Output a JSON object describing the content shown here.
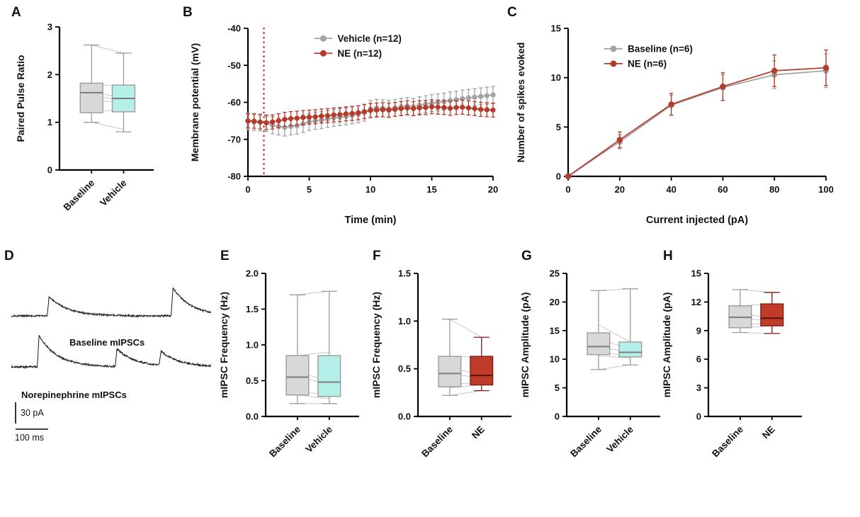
{
  "panel_letters": [
    "A",
    "B",
    "C",
    "D",
    "E",
    "F",
    "G",
    "H"
  ],
  "colors": {
    "axis": "#000000",
    "gray": "#a3a3a3",
    "red": "#b43a2b",
    "vline_red": "#c0392b",
    "gray_box_fill": "#d8d8d8",
    "cyan_box_fill": "#b4f0e8",
    "red_box_fill": "#c13b2b",
    "box_stroke": "#9b9b9b",
    "red_box_stroke": "#7c2014",
    "median": "#7d7d7d",
    "red_median": "#551208",
    "pair_line": "#c8c8c8",
    "trace": "#1a1a1a"
  },
  "chart_data": [
    {
      "id": "A",
      "type": "boxplot",
      "ylabel": "Paired Pulse Ratio",
      "ylim": [
        0,
        3
      ],
      "yticks": [
        0,
        1,
        2,
        3
      ],
      "ydec": 0,
      "categories": [
        "Baseline",
        "Vehicle"
      ],
      "boxes": [
        {
          "category": "Baseline",
          "min": 1.0,
          "q1": 1.2,
          "median": 1.62,
          "q3": 1.82,
          "max": 2.62,
          "fill": "gray_box_fill"
        },
        {
          "category": "Vehicle",
          "min": 0.8,
          "q1": 1.22,
          "median": 1.5,
          "q3": 1.78,
          "max": 2.45,
          "fill": "cyan_box_fill"
        }
      ],
      "pairs": [
        [
          2.62,
          2.45
        ],
        [
          1.8,
          1.75
        ],
        [
          1.65,
          1.5
        ],
        [
          1.6,
          1.42
        ],
        [
          1.42,
          1.45
        ],
        [
          1.2,
          1.28
        ],
        [
          1.0,
          0.85
        ]
      ]
    },
    {
      "id": "B",
      "type": "line",
      "xlabel": "Time (min)",
      "ylabel": "Membrane potential (mV)",
      "xlim": [
        0,
        20
      ],
      "ylim": [
        -80,
        -40
      ],
      "xticks": [
        0,
        5,
        10,
        15,
        20
      ],
      "yticks": [
        -80,
        -70,
        -60,
        -50,
        -40
      ],
      "ydec": 0,
      "vline": {
        "x": 1.3,
        "color": "vline_red",
        "style": "dotted"
      },
      "legend_pos": [
        0.27,
        0.03
      ],
      "marker_r": 3.6,
      "x": [
        0,
        0.5,
        1,
        1.5,
        2,
        2.5,
        3,
        3.5,
        4,
        4.5,
        5,
        5.5,
        6,
        6.5,
        7,
        7.5,
        8,
        8.5,
        9,
        9.5,
        10,
        10.5,
        11,
        11.5,
        12,
        12.5,
        13,
        13.5,
        14,
        14.5,
        15,
        15.5,
        16,
        16.5,
        17,
        17.5,
        18,
        18.5,
        19,
        19.5,
        20
      ],
      "series": [
        {
          "name": "Vehicle (n=12)",
          "color": "gray",
          "err": 2.3,
          "values": [
            -65.2,
            -65.3,
            -65.4,
            -65.6,
            -66.2,
            -66.5,
            -66.8,
            -66.5,
            -66.3,
            -65.8,
            -65.3,
            -65.0,
            -64.8,
            -64.5,
            -64.2,
            -64.0,
            -63.8,
            -63.5,
            -63.2,
            -62.8,
            -61.8,
            -61.5,
            -61.6,
            -61.8,
            -61.5,
            -61.2,
            -61.0,
            -61.2,
            -60.8,
            -60.5,
            -60.2,
            -60.0,
            -59.8,
            -59.5,
            -59.3,
            -59.0,
            -58.8,
            -58.6,
            -58.4,
            -58.2,
            -58.0
          ]
        },
        {
          "name": "NE (n=12)",
          "color": "red",
          "err": 1.9,
          "values": [
            -65.0,
            -65.1,
            -65.3,
            -65.5,
            -65.3,
            -65.0,
            -64.6,
            -64.4,
            -64.3,
            -64.1,
            -64.0,
            -63.9,
            -63.7,
            -63.6,
            -63.4,
            -63.3,
            -63.1,
            -63.0,
            -62.8,
            -62.5,
            -62.2,
            -62.1,
            -62.0,
            -62.1,
            -61.9,
            -61.7,
            -61.5,
            -61.7,
            -61.5,
            -61.4,
            -61.2,
            -61.3,
            -61.4,
            -61.6,
            -61.4,
            -61.3,
            -61.5,
            -61.7,
            -61.9,
            -62.0,
            -62.1
          ]
        }
      ]
    },
    {
      "id": "C",
      "type": "line",
      "xlabel": "Current injected (pA)",
      "ylabel": "Number of spikes evoked",
      "xlim": [
        0,
        100
      ],
      "ylim": [
        0,
        15
      ],
      "xticks": [
        0,
        20,
        40,
        60,
        80,
        100
      ],
      "yticks": [
        0,
        5,
        10,
        15
      ],
      "ydec": 0,
      "legend_pos": [
        0.14,
        0.1
      ],
      "marker_r": 4.2,
      "x": [
        0,
        20,
        40,
        60,
        80,
        100
      ],
      "series": [
        {
          "name": "Baseline (n=6)",
          "color": "gray",
          "errs": [
            0,
            0.7,
            1.0,
            1.3,
            1.4,
            1.7
          ],
          "values": [
            0,
            3.5,
            7.2,
            9.0,
            10.3,
            10.7
          ]
        },
        {
          "name": "NE (n=6)",
          "color": "red",
          "errs": [
            0,
            0.8,
            1.1,
            1.4,
            1.6,
            1.8
          ],
          "values": [
            0,
            3.7,
            7.3,
            9.1,
            10.7,
            11.0
          ]
        }
      ]
    },
    {
      "id": "D",
      "type": "traces",
      "traces": [
        {
          "label": "Baseline mIPSCs",
          "label_color": "trace",
          "events": [
            {
              "pos": 0.18,
              "amp": 0.5
            },
            {
              "pos": 0.8,
              "amp": 0.72
            }
          ]
        },
        {
          "label": "Norepinephrine mIPSCs",
          "label_color": "red",
          "events": [
            {
              "pos": 0.13,
              "amp": 0.8
            },
            {
              "pos": 0.52,
              "amp": 0.45
            },
            {
              "pos": 0.74,
              "amp": 0.36
            }
          ]
        }
      ],
      "scalebar": {
        "vertical": "30 pA",
        "horizontal": "100 ms"
      }
    },
    {
      "id": "E",
      "type": "boxplot",
      "ylabel": "mIPSC Frequency (Hz)",
      "ylim": [
        0,
        2
      ],
      "yticks": [
        0,
        0.5,
        1,
        1.5,
        2
      ],
      "ydec": 1,
      "categories": [
        "Baseline",
        "Vehicle"
      ],
      "boxes": [
        {
          "category": "Baseline",
          "min": 0.18,
          "q1": 0.3,
          "median": 0.55,
          "q3": 0.85,
          "max": 1.7,
          "fill": "gray_box_fill"
        },
        {
          "category": "Vehicle",
          "min": 0.18,
          "q1": 0.28,
          "median": 0.48,
          "q3": 0.85,
          "max": 1.75,
          "fill": "cyan_box_fill"
        }
      ],
      "pairs": [
        [
          1.7,
          1.75
        ],
        [
          0.85,
          0.9
        ],
        [
          0.62,
          0.5
        ],
        [
          0.55,
          0.45
        ],
        [
          0.35,
          0.3
        ],
        [
          0.3,
          0.25
        ],
        [
          0.18,
          0.18
        ]
      ]
    },
    {
      "id": "F",
      "type": "boxplot",
      "ylabel": "mIPSC Frequency (Hz)",
      "ylim": [
        0,
        1.5
      ],
      "yticks": [
        0,
        0.5,
        1,
        1.5
      ],
      "ydec": 1,
      "categories": [
        "Baseline",
        "NE"
      ],
      "boxes": [
        {
          "category": "Baseline",
          "min": 0.22,
          "q1": 0.31,
          "median": 0.45,
          "q3": 0.63,
          "max": 1.02,
          "fill": "gray_box_fill"
        },
        {
          "category": "NE",
          "min": 0.27,
          "q1": 0.33,
          "median": 0.43,
          "q3": 0.63,
          "max": 0.83,
          "fill": "red_box_fill",
          "stroke": "red_box_stroke",
          "median_color": "red_median"
        }
      ],
      "pairs": [
        [
          1.02,
          0.83
        ],
        [
          0.63,
          0.62
        ],
        [
          0.5,
          0.45
        ],
        [
          0.45,
          0.4
        ],
        [
          0.35,
          0.34
        ],
        [
          0.3,
          0.33
        ],
        [
          0.22,
          0.27
        ]
      ]
    },
    {
      "id": "G",
      "type": "boxplot",
      "ylabel": "mIPSC Amplitude (pA)",
      "ylim": [
        0,
        25
      ],
      "yticks": [
        0,
        5,
        10,
        15,
        20,
        25
      ],
      "ydec": 0,
      "categories": [
        "Baseline",
        "Vehicle"
      ],
      "boxes": [
        {
          "category": "Baseline",
          "min": 8.2,
          "q1": 10.8,
          "median": 12.2,
          "q3": 14.6,
          "max": 22.0,
          "fill": "gray_box_fill"
        },
        {
          "category": "Vehicle",
          "min": 9.0,
          "q1": 10.4,
          "median": 11.2,
          "q3": 13.0,
          "max": 22.3,
          "fill": "cyan_box_fill"
        }
      ],
      "pairs": [
        [
          22.0,
          22.3
        ],
        [
          16.0,
          13.0
        ],
        [
          13.5,
          11.8
        ],
        [
          12.2,
          11.2
        ],
        [
          11.2,
          10.6
        ],
        [
          10.6,
          10.2
        ],
        [
          8.2,
          9.0
        ]
      ]
    },
    {
      "id": "H",
      "type": "boxplot",
      "ylabel": "mIPSC Amplitude (pA)",
      "ylim": [
        0,
        15
      ],
      "yticks": [
        0,
        3,
        6,
        9,
        12,
        15
      ],
      "ydec": 0,
      "categories": [
        "Baseline",
        "NE"
      ],
      "boxes": [
        {
          "category": "Baseline",
          "min": 8.8,
          "q1": 9.3,
          "median": 10.4,
          "q3": 11.6,
          "max": 13.3,
          "fill": "gray_box_fill"
        },
        {
          "category": "NE",
          "min": 8.7,
          "q1": 9.5,
          "median": 10.3,
          "q3": 11.8,
          "max": 13.0,
          "fill": "red_box_fill",
          "stroke": "red_box_stroke",
          "median_color": "red_median"
        }
      ],
      "pairs": [
        [
          13.3,
          13.0
        ],
        [
          11.6,
          11.8
        ],
        [
          10.8,
          10.3
        ],
        [
          10.3,
          10.0
        ],
        [
          9.6,
          9.8
        ],
        [
          9.3,
          9.5
        ],
        [
          8.8,
          8.7
        ]
      ]
    }
  ]
}
